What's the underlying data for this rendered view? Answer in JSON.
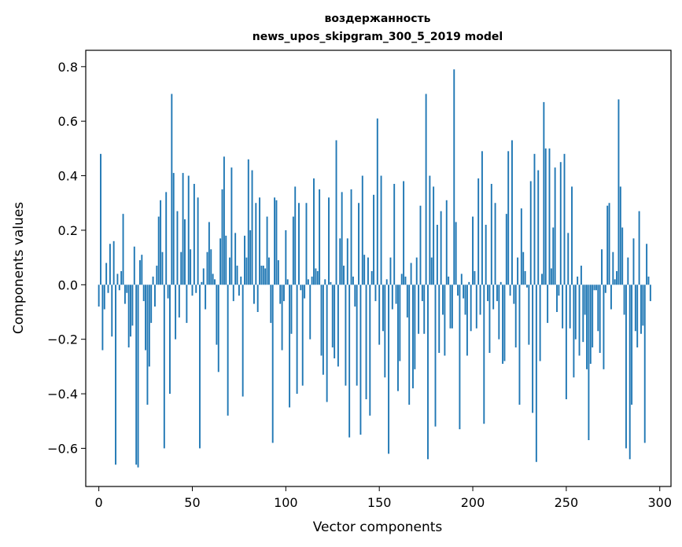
{
  "chart_data": {
    "type": "bar",
    "title": "воздержанность",
    "subtitle": "news_upos_skipgram_300_5_2019 model",
    "xlabel": "Vector components",
    "ylabel": "Components values",
    "xlim": [
      -7.0,
      306.0
    ],
    "ylim": [
      -0.74,
      0.86
    ],
    "xticks": [
      0,
      50,
      100,
      150,
      200,
      250,
      300
    ],
    "yticks": [
      -0.6,
      -0.4,
      -0.2,
      0.0,
      0.2,
      0.4,
      0.6,
      0.8
    ],
    "ytick_labels": [
      "−0.6",
      "−0.4",
      "−0.2",
      "0.0",
      "0.2",
      "0.4",
      "0.6",
      "0.8"
    ],
    "bar_color": "#1f77b4",
    "values": [
      -0.08,
      0.48,
      -0.24,
      -0.09,
      0.08,
      -0.03,
      0.15,
      -0.19,
      0.16,
      -0.66,
      0.04,
      -0.02,
      0.05,
      0.26,
      -0.07,
      -0.03,
      -0.23,
      -0.19,
      -0.15,
      0.14,
      -0.66,
      -0.67,
      0.09,
      0.11,
      -0.06,
      -0.24,
      -0.44,
      -0.3,
      -0.14,
      0.03,
      -0.08,
      0.07,
      0.25,
      0.31,
      0.12,
      -0.6,
      0.34,
      -0.05,
      -0.4,
      0.7,
      0.41,
      -0.2,
      0.27,
      -0.12,
      0.12,
      0.41,
      0.24,
      -0.14,
      0.4,
      0.13,
      -0.04,
      0.37,
      -0.03,
      0.32,
      -0.6,
      0.01,
      0.06,
      -0.09,
      0.12,
      0.23,
      0.13,
      0.04,
      0.02,
      -0.22,
      -0.32,
      0.17,
      0.35,
      0.47,
      0.18,
      -0.48,
      0.1,
      0.43,
      -0.06,
      0.19,
      0.07,
      -0.04,
      0.03,
      -0.41,
      0.18,
      0.1,
      0.46,
      0.2,
      0.42,
      -0.07,
      0.3,
      -0.1,
      0.32,
      0.07,
      0.07,
      0.06,
      0.25,
      0.1,
      -0.14,
      -0.58,
      0.32,
      0.31,
      0.09,
      -0.07,
      -0.24,
      -0.06,
      0.2,
      0.02,
      -0.45,
      -0.18,
      0.25,
      0.36,
      -0.4,
      0.3,
      -0.02,
      -0.37,
      -0.05,
      0.3,
      0.02,
      -0.2,
      0.03,
      0.39,
      0.06,
      0.05,
      0.35,
      -0.26,
      -0.33,
      0.02,
      -0.43,
      0.32,
      0.01,
      -0.23,
      -0.27,
      0.53,
      -0.3,
      0.17,
      0.34,
      0.07,
      -0.37,
      0.17,
      -0.56,
      0.35,
      0.03,
      -0.08,
      -0.37,
      0.3,
      -0.55,
      0.4,
      0.11,
      -0.42,
      0.1,
      -0.48,
      0.05,
      0.33,
      -0.06,
      0.61,
      -0.22,
      0.4,
      -0.17,
      -0.34,
      0.02,
      -0.62,
      0.1,
      -0.09,
      0.37,
      -0.07,
      -0.39,
      -0.28,
      0.04,
      0.38,
      0.03,
      -0.12,
      -0.44,
      0.08,
      -0.38,
      -0.31,
      0.1,
      -0.18,
      0.29,
      -0.06,
      -0.18,
      0.7,
      -0.64,
      0.4,
      0.1,
      0.36,
      -0.52,
      0.22,
      -0.25,
      0.27,
      -0.11,
      -0.26,
      0.31,
      0.03,
      -0.16,
      -0.16,
      0.79,
      0.23,
      -0.04,
      -0.53,
      0.04,
      -0.05,
      -0.11,
      -0.26,
      0.01,
      -0.17,
      0.25,
      0.05,
      -0.16,
      0.39,
      -0.11,
      0.49,
      -0.51,
      0.22,
      -0.06,
      -0.25,
      0.37,
      -0.09,
      0.3,
      -0.06,
      -0.2,
      0.01,
      -0.29,
      -0.28,
      0.26,
      0.49,
      -0.04,
      0.53,
      -0.07,
      -0.23,
      0.1,
      -0.44,
      0.28,
      0.12,
      0.05,
      -0.01,
      -0.22,
      0.38,
      -0.47,
      0.48,
      -0.65,
      0.42,
      -0.28,
      0.04,
      0.67,
      0.5,
      -0.14,
      0.5,
      0.06,
      0.21,
      0.43,
      -0.1,
      -0.04,
      0.45,
      -0.16,
      0.48,
      -0.42,
      0.19,
      -0.16,
      0.36,
      -0.34,
      -0.2,
      0.03,
      -0.26,
      0.07,
      -0.21,
      -0.11,
      -0.31,
      -0.57,
      -0.29,
      -0.23,
      -0.02,
      -0.02,
      -0.17,
      -0.25,
      0.13,
      -0.31,
      -0.03,
      0.29,
      0.3,
      -0.09,
      0.12,
      0.02,
      0.05,
      0.68,
      0.36,
      0.21,
      -0.11,
      -0.6,
      0.1,
      -0.64,
      -0.44,
      0.17,
      -0.17,
      -0.23,
      0.27,
      -0.18,
      -0.15,
      -0.58,
      0.15,
      0.03,
      -0.06
    ]
  }
}
